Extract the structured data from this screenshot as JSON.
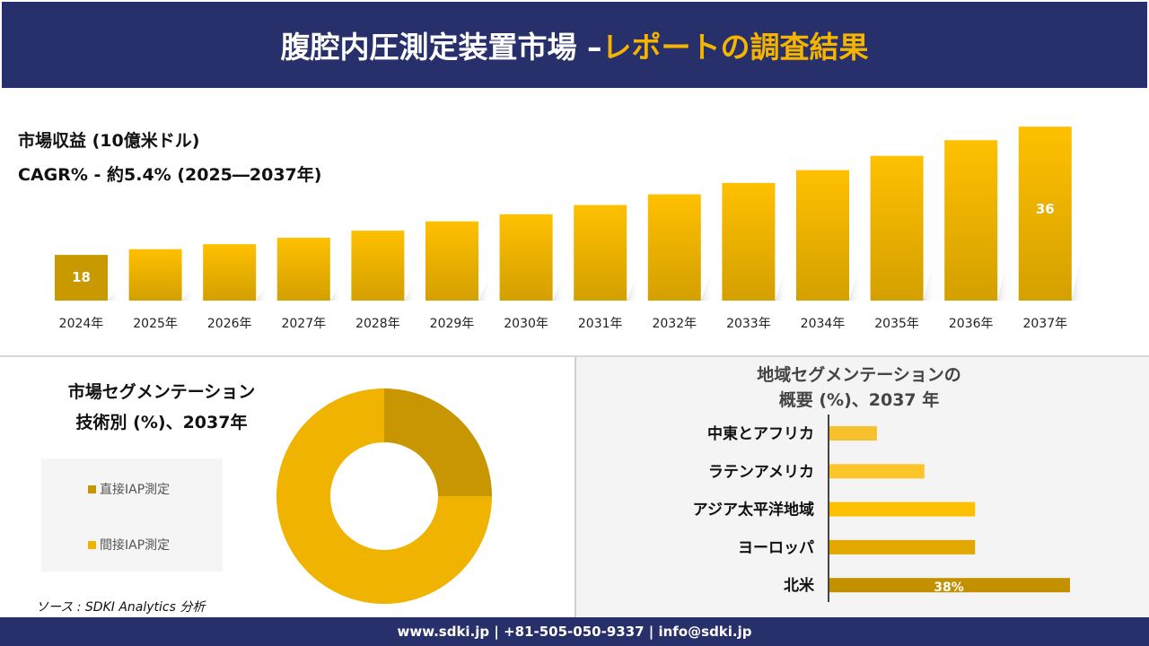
{
  "header": {
    "title_main": "腹腔内圧測定装置市場 –",
    "title_accent": "レポートの調査結果"
  },
  "colors": {
    "header_bg": "#27306a",
    "accent": "#f5b400",
    "bar_dark": "#c99a00",
    "bar_light": "#ffc000",
    "donut_dark": "#c89600",
    "donut_light": "#f0b400"
  },
  "chart_data": [
    {
      "type": "bar",
      "title": "市場収益 (10億米ドル)",
      "subtitle": "CAGR% - 約5.4% (2025―2037年)",
      "categories": [
        "2024年",
        "2025年",
        "2026年",
        "2027年",
        "2028年",
        "2029年",
        "2030年",
        "2031年",
        "2032年",
        "2033年",
        "2034年",
        "2035年",
        "2036年",
        "2037年"
      ],
      "values": [
        18,
        18.8,
        19.5,
        20.4,
        21.4,
        22.7,
        23.7,
        25.0,
        26.5,
        28.1,
        29.9,
        31.9,
        34.1,
        36
      ],
      "data_labels": {
        "0": "18",
        "13": "36"
      },
      "grid": false
    },
    {
      "type": "pie",
      "title": "市場セグメンテーション 技術別 (%)、2037年",
      "donut": true,
      "series": [
        {
          "name": "直接IAP測定",
          "value": 25
        },
        {
          "name": "間接IAP測定",
          "value": 75
        }
      ],
      "legend": "left"
    },
    {
      "type": "bar",
      "orientation": "horizontal",
      "title": "地域セグメンテーションの 概要 (%)、2037 年",
      "categories": [
        "中東とアフリカ",
        "ラテンアメリカ",
        "アジア太平洋地域",
        "ヨーロッパ",
        "北米"
      ],
      "values": [
        7.5,
        15,
        23,
        23,
        38
      ],
      "data_labels": {
        "4": "38%"
      }
    }
  ],
  "seg": {
    "title_line1": "市場セグメンテーション",
    "title_line2": "技術別 (%)、2037年"
  },
  "region": {
    "title_line1": "地域セグメンテーションの",
    "title_line2": "概要 (%)、2037 年"
  },
  "source": "ソース : SDKI Analytics 分析",
  "footer": "www.sdki.jp | +81-505-050-9337 | info@sdki.jp"
}
